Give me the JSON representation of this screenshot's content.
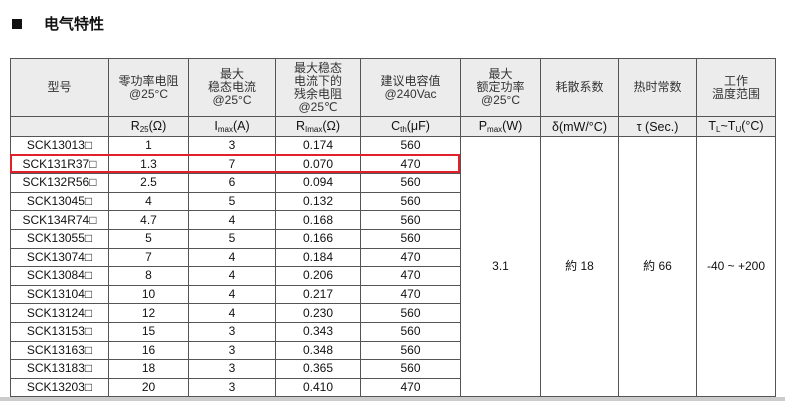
{
  "title": "电气特性",
  "headers": [
    "型号",
    "零功率电阻\n@25°C",
    "最大\n稳态电流\n@25°C",
    "最大稳态\n电流下的\n残余电阻\n@25℃",
    "建议电容值\n@240Vac",
    "最大\n额定功率\n@25°C",
    "耗散系数",
    "热时常数",
    "工作\n温度范围"
  ],
  "units": [
    {
      "main": "",
      "sub": "",
      "rest": ""
    },
    {
      "main": "R",
      "sub": "25",
      "rest": "(Ω)"
    },
    {
      "main": "I",
      "sub": "max",
      "rest": "(A)"
    },
    {
      "main": "R",
      "sub": "Imax",
      "rest": "(Ω)"
    },
    {
      "main": "C",
      "sub": "th",
      "rest": "(μF)"
    },
    {
      "main": "P",
      "sub": "max",
      "rest": "(W)"
    },
    {
      "main": "δ(mW/°C)",
      "sub": "",
      "rest": ""
    },
    {
      "main": "τ (Sec.)",
      "sub": "",
      "rest": ""
    },
    {
      "main": "T",
      "sub": "L",
      "rest": "~T",
      "sub2": "U",
      "rest2": "(°C)"
    }
  ],
  "rows": [
    [
      "SCK13013□",
      "1",
      "3",
      "0.174",
      "560"
    ],
    [
      "SCK131R37□",
      "1.3",
      "7",
      "0.070",
      "470"
    ],
    [
      "SCK132R56□",
      "2.5",
      "6",
      "0.094",
      "560"
    ],
    [
      "SCK13045□",
      "4",
      "5",
      "0.132",
      "560"
    ],
    [
      "SCK134R74□",
      "4.7",
      "4",
      "0.168",
      "560"
    ],
    [
      "SCK13055□",
      "5",
      "5",
      "0.166",
      "560"
    ],
    [
      "SCK13074□",
      "7",
      "4",
      "0.184",
      "470"
    ],
    [
      "SCK13084□",
      "8",
      "4",
      "0.206",
      "470"
    ],
    [
      "SCK13104□",
      "10",
      "4",
      "0.217",
      "470"
    ],
    [
      "SCK13124□",
      "12",
      "4",
      "0.230",
      "560"
    ],
    [
      "SCK13153□",
      "15",
      "3",
      "0.343",
      "560"
    ],
    [
      "SCK13163□",
      "16",
      "3",
      "0.348",
      "560"
    ],
    [
      "SCK13183□",
      "18",
      "3",
      "0.365",
      "560"
    ],
    [
      "SCK13203□",
      "20",
      "3",
      "0.410",
      "470"
    ]
  ],
  "shared": [
    "3.1",
    "約 18",
    "約 66",
    "-40 ~ +200"
  ],
  "highlight_color": "#e0202a"
}
